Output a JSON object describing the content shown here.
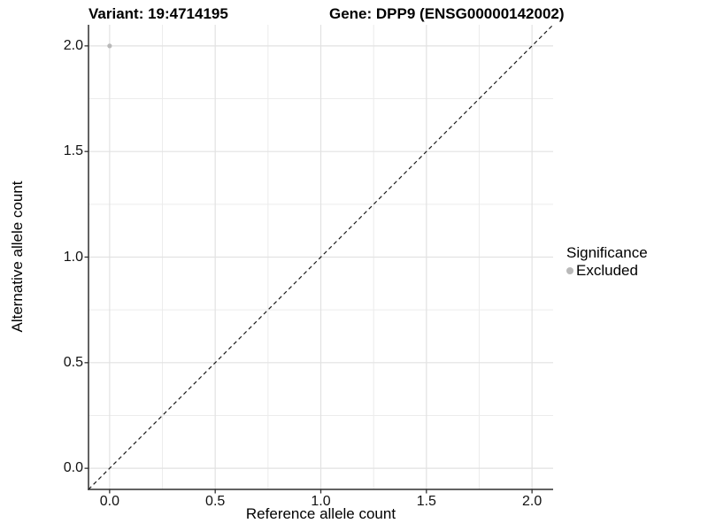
{
  "chart_data": {
    "type": "scatter",
    "title_left": "Variant: 19:4714195",
    "title_right": "Gene: DPP9 (ENSG00000142002)",
    "xlabel": "Reference allele count",
    "ylabel": "Alternative allele count",
    "xlim": [
      -0.1,
      2.1
    ],
    "ylim": [
      -0.1,
      2.1
    ],
    "x_ticks": {
      "values": [
        0,
        0.5,
        1,
        1.5,
        2
      ],
      "labels": [
        "0.0",
        "0.5",
        "1.0",
        "1.5",
        "2.0"
      ]
    },
    "y_ticks": {
      "values": [
        0,
        0.5,
        1,
        1.5,
        2
      ],
      "labels": [
        "0.0",
        "0.5",
        "1.0",
        "1.5",
        "2.0"
      ]
    },
    "minor_ticks": [
      0.25,
      0.75,
      1.25,
      1.75
    ],
    "grid": true,
    "reference_line": {
      "type": "identity",
      "slope": 1,
      "intercept": 0,
      "style": "dashed",
      "color": "#1a1a1a"
    },
    "series": [
      {
        "name": "Excluded",
        "color": "#b9b9b9",
        "points": [
          {
            "x": 0.0,
            "y": 2.0
          }
        ]
      }
    ],
    "legend": {
      "title": "Significance",
      "position": "right",
      "items": [
        {
          "label": "Excluded",
          "color": "#b9b9b9"
        }
      ]
    },
    "colors": {
      "grid_major": "#e2e2e2",
      "grid_minor": "#ececec",
      "axis_line": "#2f2f2f",
      "point": "#b9b9b9"
    }
  }
}
